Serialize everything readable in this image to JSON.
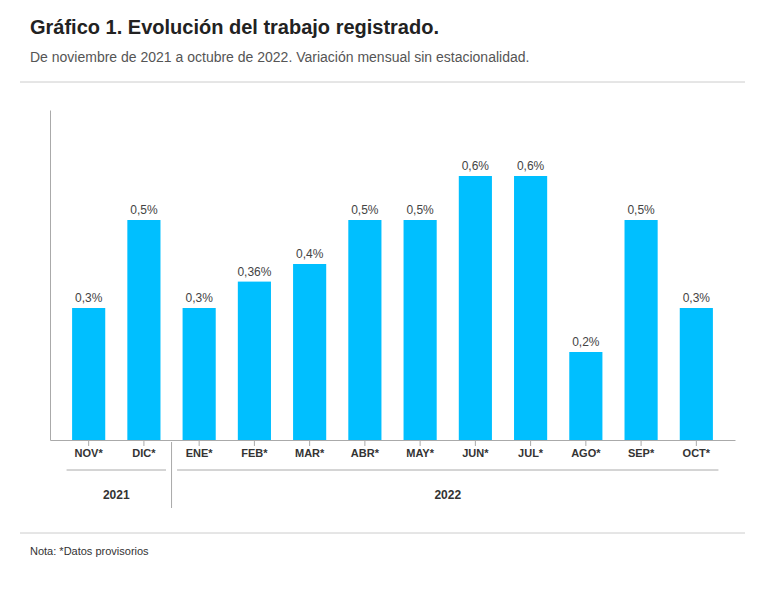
{
  "chart_data": {
    "type": "bar",
    "title": "Gráfico 1. Evolución del trabajo registrado.",
    "subtitle": "De noviembre de 2021 a octubre de 2022. Variación mensual sin estacionalidad.",
    "categories": [
      "NOV*",
      "DIC*",
      "ENE*",
      "FEB*",
      "MAR*",
      "ABR*",
      "MAY*",
      "JUN*",
      "JUL*",
      "AGO*",
      "SEP*",
      "OCT*"
    ],
    "values": [
      0.3,
      0.5,
      0.3,
      0.36,
      0.4,
      0.5,
      0.5,
      0.6,
      0.6,
      0.2,
      0.5,
      0.3
    ],
    "value_labels": [
      "0,3%",
      "0,5%",
      "0,3%",
      "0,36%",
      "0,4%",
      "0,5%",
      "0,5%",
      "0,6%",
      "0,6%",
      "0,2%",
      "0,5%",
      "0,3%"
    ],
    "color": "#00BFFF",
    "ylim": [
      0,
      0.75
    ],
    "data_labels": true,
    "tick_labels": "x",
    "annotations": [
      {
        "text": "2021",
        "from": "NOV*",
        "to": "DIC*"
      },
      {
        "text": "2022",
        "from": "ENE*",
        "to": "OCT*"
      },
      {
        "text": "Nota: *Datos provisorios"
      }
    ]
  }
}
